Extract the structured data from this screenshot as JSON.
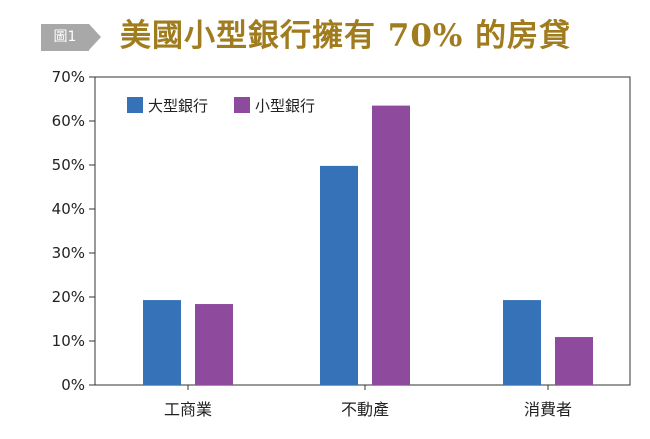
{
  "figure_tag": "圖1",
  "chart_data": {
    "type": "bar",
    "title": "美國小型銀行擁有 70% 的房貸",
    "categories": [
      "工商業",
      "不動產",
      "消費者"
    ],
    "series": [
      {
        "name": "大型銀行",
        "values": [
          19.3,
          49.8,
          19.3
        ]
      },
      {
        "name": "小型銀行",
        "values": [
          18.4,
          63.5,
          10.9
        ]
      }
    ],
    "yticks": [
      "0%",
      "10%",
      "20%",
      "30%",
      "40%",
      "50%",
      "60%",
      "70%"
    ],
    "ylim": [
      0,
      70
    ],
    "xlabel": "",
    "ylabel": "",
    "grid": false,
    "legend_position": "top-left"
  },
  "colors": {
    "series": [
      "#3572b8",
      "#8e4a9c"
    ],
    "title": "#a07c1e",
    "tag": "#a8a8a8",
    "axis": "#333333"
  }
}
